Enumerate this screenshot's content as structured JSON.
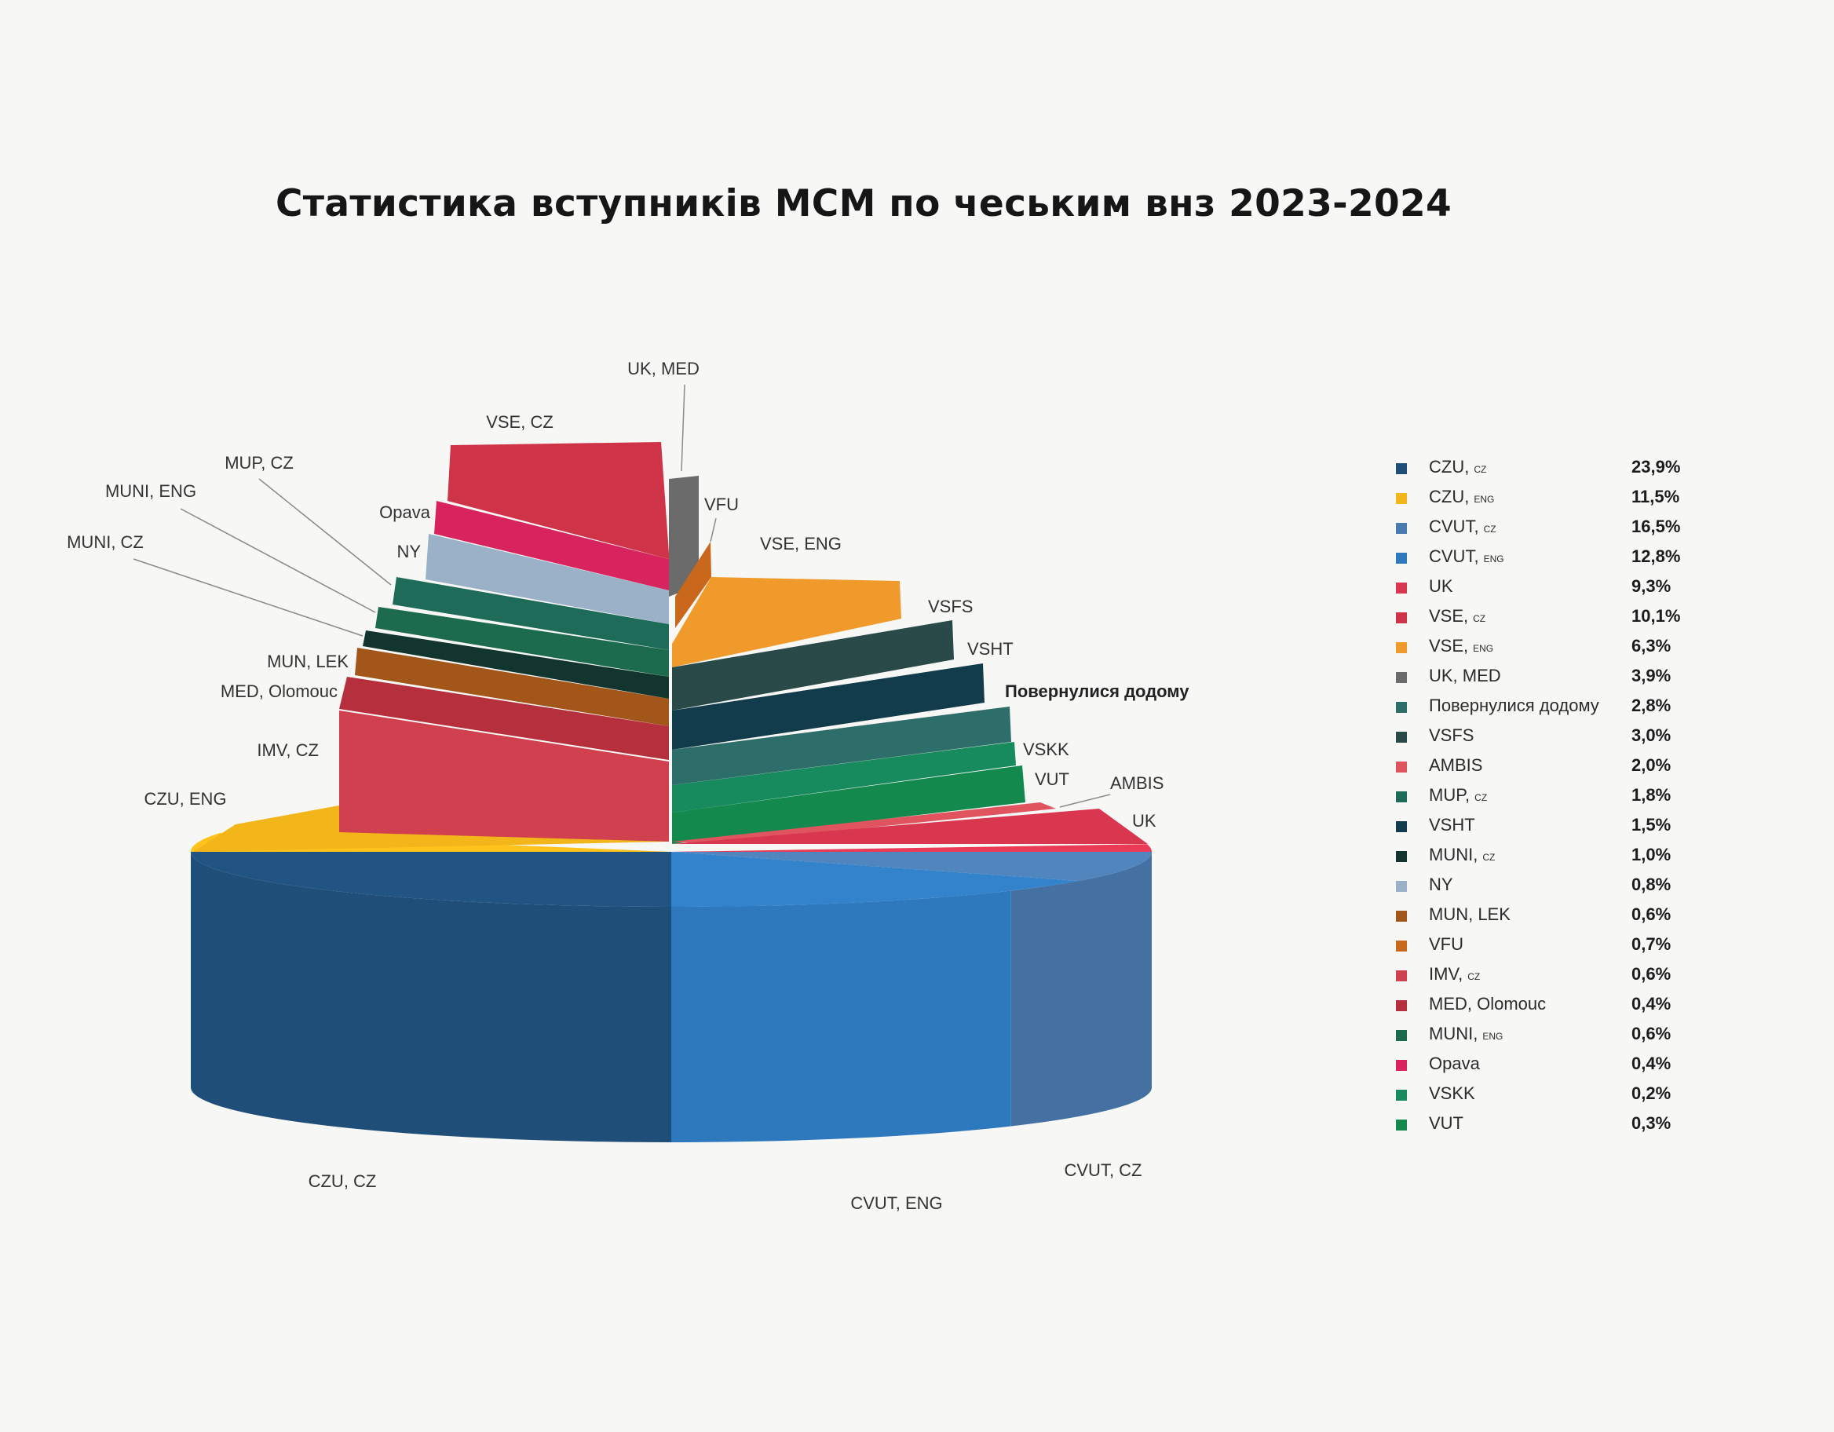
{
  "title": "Статистика вступників МСМ по чеським внз 2023-2024",
  "chart_data": {
    "type": "pie",
    "title": "Статистика вступників МСМ по чеським внз 2023-2024",
    "legend_position": "right",
    "series": [
      {
        "name": "CZU",
        "suffix": "CZ",
        "label": "CZU, CZ",
        "value": 23.9,
        "value_text": "23,9%",
        "color": "#1f4e79"
      },
      {
        "name": "CZU",
        "suffix": "ENG",
        "label": "CZU, ENG",
        "value": 11.5,
        "value_text": "11,5%",
        "color": "#f2b51a"
      },
      {
        "name": "CVUT",
        "suffix": "CZ",
        "label": "CVUT, CZ",
        "value": 16.5,
        "value_text": "16,5%",
        "color": "#4a7bb0"
      },
      {
        "name": "CVUT",
        "suffix": "ENG",
        "label": "CVUT, ENG",
        "value": 12.8,
        "value_text": "12,8%",
        "color": "#2e79bd"
      },
      {
        "name": "UK",
        "suffix": "",
        "label": "UK",
        "value": 9.3,
        "value_text": "9,3%",
        "color": "#d9364f"
      },
      {
        "name": "VSE",
        "suffix": "CZ",
        "label": "VSE, CZ",
        "value": 10.1,
        "value_text": "10,1%",
        "color": "#cf3348"
      },
      {
        "name": "VSE",
        "suffix": "ENG",
        "label": "VSE, ENG",
        "value": 6.3,
        "value_text": "6,3%",
        "color": "#f19a2c"
      },
      {
        "name": "UK, MED",
        "suffix": "",
        "label": "UK, MED",
        "value": 3.9,
        "value_text": "3,9%",
        "color": "#6b6b6b"
      },
      {
        "name": "Повернулися додому",
        "suffix": "",
        "label": "Повернулися додому",
        "value": 2.8,
        "value_text": "2,8%",
        "color": "#2e6e6a"
      },
      {
        "name": "VSFS",
        "suffix": "",
        "label": "VSFS",
        "value": 3.0,
        "value_text": "3,0%",
        "color": "#2a4a4a"
      },
      {
        "name": "AMBIS",
        "suffix": "",
        "label": "AMBIS",
        "value": 2.0,
        "value_text": "2,0%",
        "color": "#e05460"
      },
      {
        "name": "MUP",
        "suffix": "CZ",
        "label": "MUP, CZ",
        "value": 1.8,
        "value_text": "1,8%",
        "color": "#1f6b5a"
      },
      {
        "name": "VSHT",
        "suffix": "",
        "label": "VSHT",
        "value": 1.5,
        "value_text": "1,5%",
        "color": "#123c4c"
      },
      {
        "name": "MUNI",
        "suffix": "CZ",
        "label": "MUNI, CZ",
        "value": 1.0,
        "value_text": "1,0%",
        "color": "#12362f"
      },
      {
        "name": "NY",
        "suffix": "",
        "label": "NY",
        "value": 0.8,
        "value_text": "0,8%",
        "color": "#9bb1c7"
      },
      {
        "name": "MUN, LEK",
        "suffix": "",
        "label": "MUN, LEK",
        "value": 0.6,
        "value_text": "0,6%",
        "color": "#a3561a"
      },
      {
        "name": "VFU",
        "suffix": "",
        "label": "VFU",
        "value": 0.7,
        "value_text": "0,7%",
        "color": "#c9681c"
      },
      {
        "name": "IMV",
        "suffix": "CZ",
        "label": "IMV, CZ",
        "value": 0.6,
        "value_text": "0,6%",
        "color": "#d0404e"
      },
      {
        "name": "MED, Olomouc",
        "suffix": "",
        "label": "MED, Olomouc",
        "value": 0.4,
        "value_text": "0,4%",
        "color": "#b52f3c"
      },
      {
        "name": "MUNI",
        "suffix": "ENG",
        "label": "MUNI, ENG",
        "value": 0.6,
        "value_text": "0,6%",
        "color": "#1c6b4d"
      },
      {
        "name": "Opava",
        "suffix": "",
        "label": "Opava",
        "value": 0.4,
        "value_text": "0,4%",
        "color": "#d8245e"
      },
      {
        "name": "VSKK",
        "suffix": "",
        "label": "VSKK",
        "value": 0.2,
        "value_text": "0,2%",
        "color": "#178a5e"
      },
      {
        "name": "VUT",
        "suffix": "",
        "label": "VUT",
        "value": 0.3,
        "value_text": "0,3%",
        "color": "#13894e"
      }
    ]
  }
}
